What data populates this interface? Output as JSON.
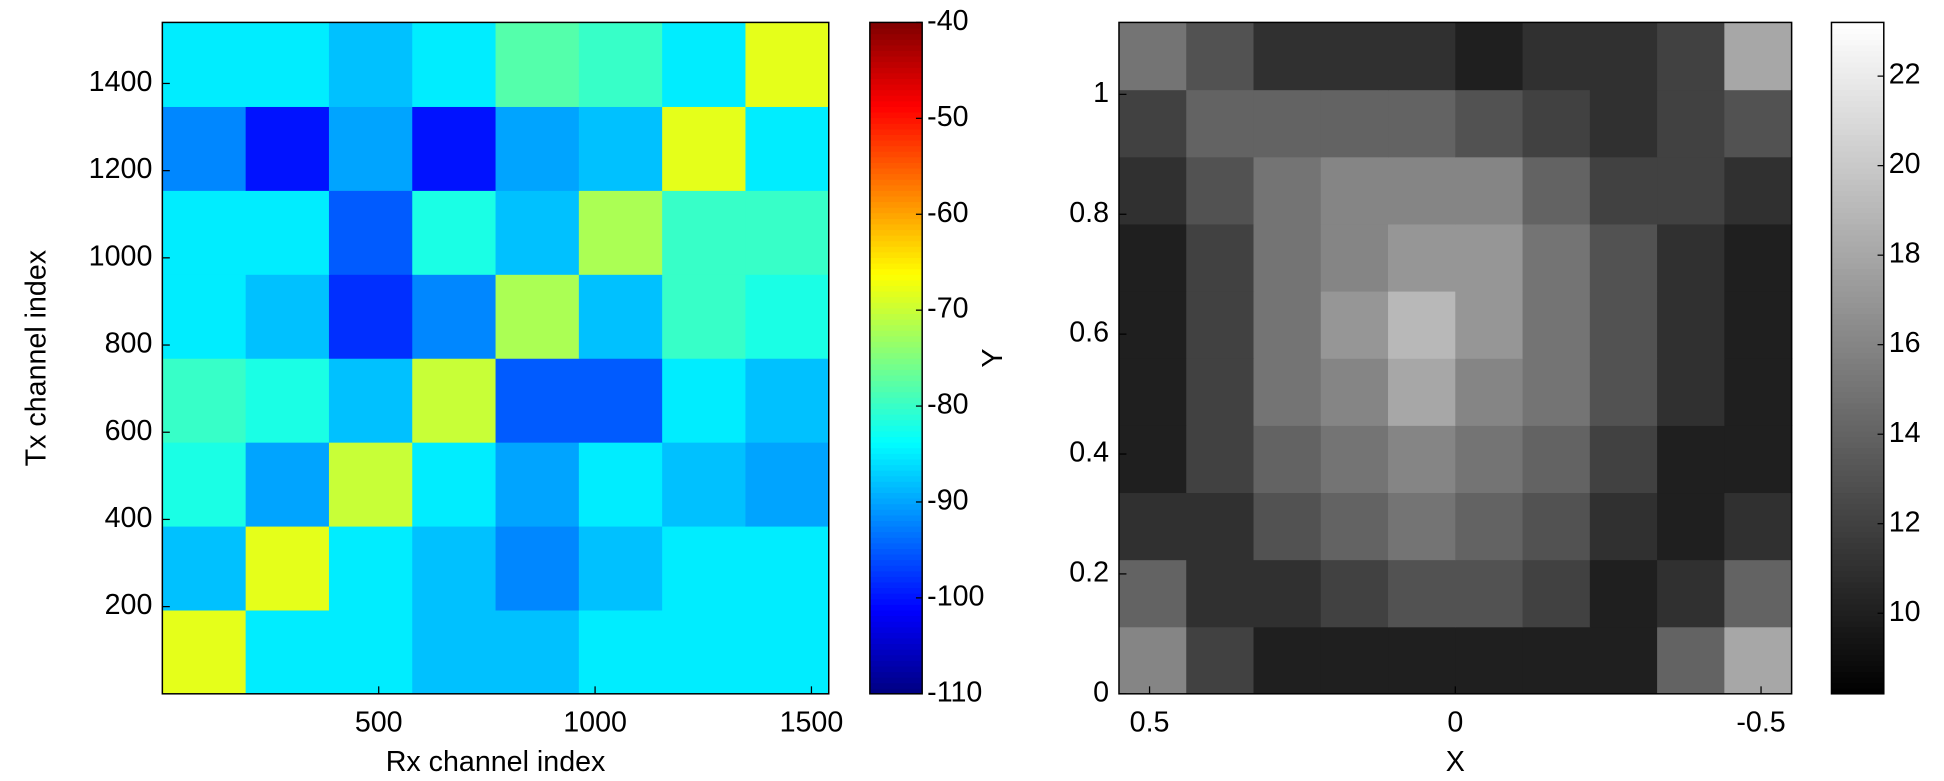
{
  "chart_data": [
    {
      "type": "heatmap",
      "xlabel": "Rx channel index",
      "ylabel": "Tx channel index",
      "xlim": [
        0,
        1540
      ],
      "ylim": [
        0,
        1540
      ],
      "xticks": [
        500,
        1000,
        1500
      ],
      "yticks": [
        200,
        400,
        600,
        800,
        1000,
        1200,
        1400
      ],
      "colormap": "jet",
      "clim": [
        -110,
        -40
      ],
      "cticks": [
        -110,
        -100,
        -90,
        -80,
        -70,
        -60,
        -50,
        -40
      ],
      "z": [
        [
          -68,
          -85,
          -85,
          -88,
          -88,
          -85,
          -85,
          -85
        ],
        [
          -88,
          -68,
          -85,
          -88,
          -92,
          -88,
          -85,
          -85
        ],
        [
          -82,
          -90,
          -70,
          -85,
          -90,
          -85,
          -88,
          -90
        ],
        [
          -80,
          -82,
          -88,
          -70,
          -95,
          -95,
          -85,
          -88
        ],
        [
          -85,
          -88,
          -98,
          -92,
          -72,
          -88,
          -80,
          -82
        ],
        [
          -85,
          -85,
          -95,
          -82,
          -88,
          -72,
          -80,
          -80
        ],
        [
          -92,
          -100,
          -90,
          -100,
          -90,
          -88,
          -68,
          -85
        ],
        [
          -85,
          -85,
          -88,
          -85,
          -78,
          -80,
          -85,
          -68
        ]
      ]
    },
    {
      "type": "heatmap",
      "xlabel": "X",
      "ylabel": "Y",
      "xlim": [
        0.55,
        -0.55
      ],
      "ylim": [
        0,
        1.12
      ],
      "xticks": [
        0.5,
        0,
        -0.5
      ],
      "yticks": [
        0,
        0.2,
        0.4,
        0.6,
        0.8,
        1
      ],
      "colormap": "gray",
      "clim": [
        8.2,
        23.2
      ],
      "cticks": [
        10,
        12,
        14,
        16,
        18,
        20,
        22
      ],
      "z": [
        [
          16,
          12,
          10,
          10,
          10,
          10,
          10,
          10,
          14,
          18
        ],
        [
          14,
          11,
          11,
          12,
          13,
          13,
          12,
          10,
          11,
          14
        ],
        [
          11,
          11,
          13,
          14,
          15,
          14,
          13,
          11,
          10,
          11
        ],
        [
          10,
          12,
          14,
          15,
          16,
          15,
          14,
          12,
          10,
          10
        ],
        [
          10,
          12,
          15,
          16,
          18,
          16,
          15,
          13,
          11,
          10
        ],
        [
          10,
          12,
          15,
          17,
          19,
          17,
          15,
          13,
          11,
          10
        ],
        [
          10,
          12,
          15,
          16,
          17,
          17,
          15,
          13,
          11,
          10
        ],
        [
          11,
          13,
          15,
          16,
          16,
          16,
          14,
          12,
          12,
          11
        ],
        [
          12,
          14,
          14,
          14,
          14,
          13,
          12,
          11,
          12,
          13
        ],
        [
          15,
          13,
          11,
          11,
          11,
          10,
          11,
          11,
          12,
          18
        ]
      ]
    }
  ]
}
